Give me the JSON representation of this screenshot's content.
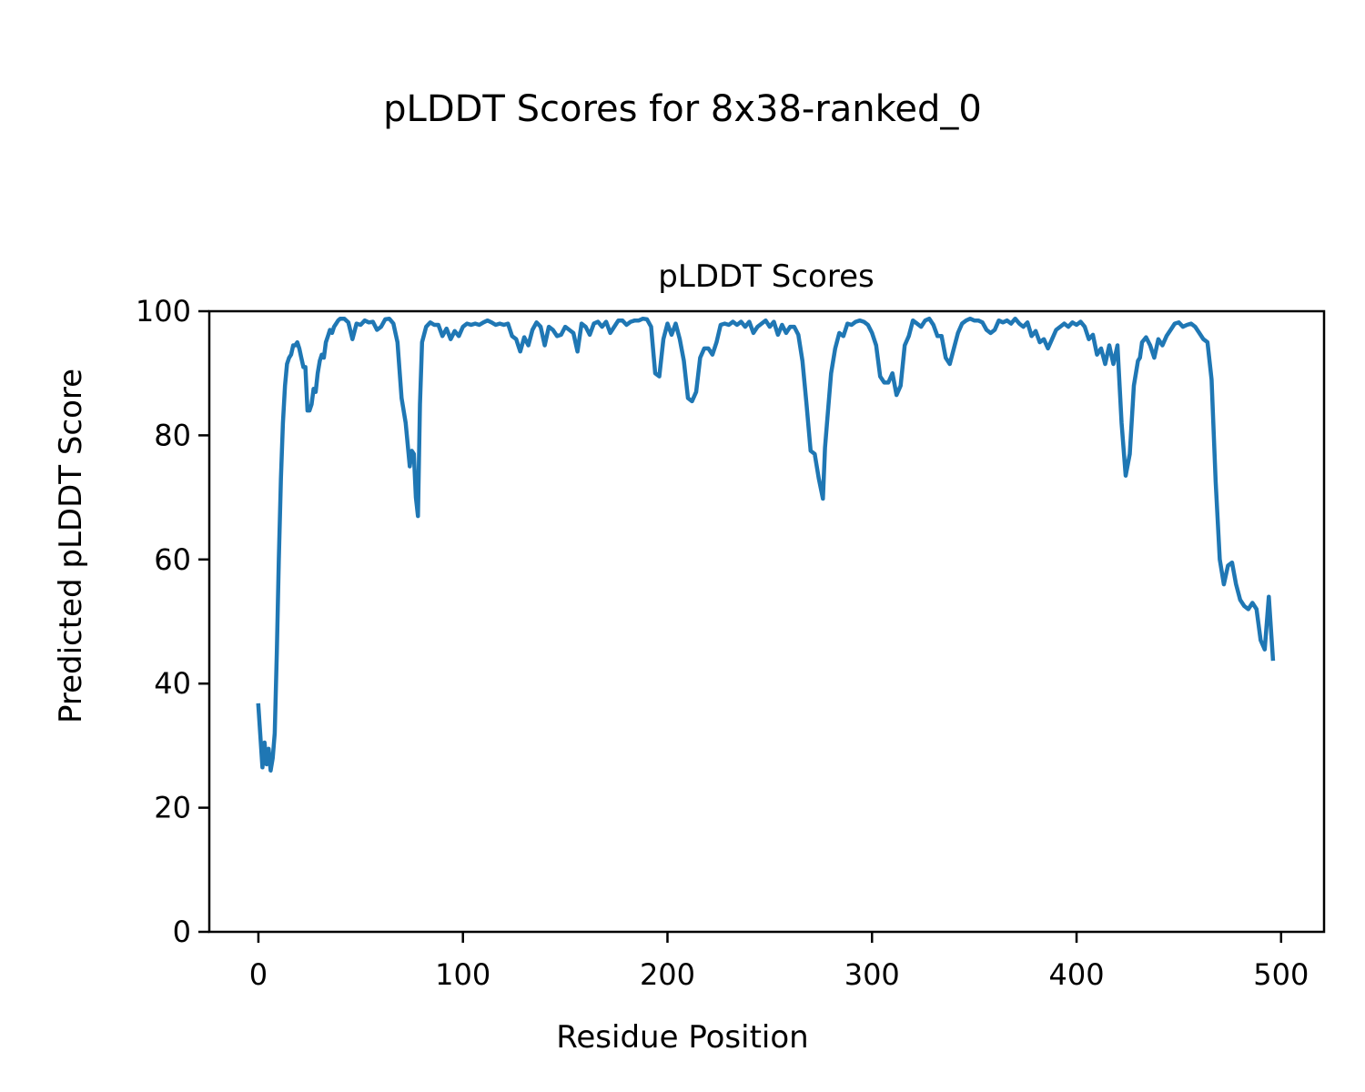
{
  "figure": {
    "suptitle": "pLDDT Scores for 8x38-ranked_0"
  },
  "chart_data": {
    "type": "line",
    "title": "pLDDT Scores",
    "xlabel": "Residue Position",
    "ylabel": "Predicted pLDDT Score",
    "xlim": [
      -24,
      521
    ],
    "ylim": [
      0,
      100
    ],
    "xticks": [
      0,
      100,
      200,
      300,
      400,
      500
    ],
    "yticks": [
      0,
      20,
      40,
      60,
      80,
      100
    ],
    "grid": false,
    "legend": "none",
    "series": [
      {
        "color": "#1f77b4",
        "x": [
          0,
          2,
          3,
          4,
          5,
          6,
          7,
          8,
          9,
          10,
          11,
          12,
          13,
          14,
          15,
          16,
          17,
          18,
          19,
          20,
          21,
          22,
          23,
          24,
          25,
          26,
          27,
          28,
          29,
          30,
          31,
          32,
          33,
          34,
          35,
          36,
          37,
          38,
          39,
          40,
          42,
          44,
          46,
          48,
          50,
          52,
          54,
          56,
          58,
          60,
          62,
          64,
          66,
          68,
          70,
          72,
          74,
          75,
          76,
          77,
          78,
          79,
          80,
          82,
          84,
          86,
          88,
          90,
          92,
          94,
          96,
          98,
          100,
          102,
          104,
          106,
          108,
          110,
          112,
          114,
          116,
          118,
          120,
          122,
          124,
          126,
          128,
          130,
          132,
          134,
          136,
          138,
          140,
          142,
          144,
          146,
          148,
          150,
          152,
          154,
          156,
          158,
          160,
          162,
          164,
          166,
          168,
          170,
          172,
          174,
          176,
          178,
          180,
          182,
          184,
          186,
          188,
          190,
          192,
          194,
          196,
          198,
          200,
          202,
          204,
          206,
          208,
          210,
          212,
          214,
          216,
          218,
          220,
          222,
          224,
          226,
          228,
          230,
          232,
          234,
          236,
          238,
          240,
          242,
          244,
          246,
          248,
          250,
          252,
          254,
          256,
          258,
          260,
          262,
          264,
          266,
          268,
          270,
          272,
          274,
          276,
          277,
          278,
          280,
          282,
          284,
          286,
          288,
          290,
          292,
          294,
          296,
          298,
          300,
          302,
          304,
          306,
          308,
          310,
          312,
          314,
          316,
          318,
          320,
          322,
          324,
          326,
          328,
          330,
          332,
          334,
          336,
          338,
          340,
          342,
          344,
          346,
          348,
          350,
          352,
          354,
          356,
          358,
          360,
          362,
          364,
          366,
          368,
          370,
          372,
          374,
          376,
          378,
          380,
          382,
          384,
          386,
          388,
          390,
          392,
          394,
          396,
          398,
          400,
          402,
          404,
          406,
          408,
          410,
          412,
          414,
          416,
          418,
          420,
          422,
          424,
          426,
          428,
          430,
          431,
          432,
          434,
          436,
          438,
          440,
          442,
          444,
          446,
          448,
          450,
          452,
          454,
          456,
          458,
          460,
          462,
          464,
          466,
          468,
          470,
          472,
          474,
          476,
          478,
          480,
          482,
          484,
          486,
          488,
          490,
          492,
          494,
          496
        ],
        "values": [
          36.5,
          26.5,
          30.5,
          27,
          29.5,
          26,
          28,
          32,
          45,
          60,
          73,
          82,
          88,
          91.5,
          92.5,
          93,
          94.5,
          94.5,
          95,
          94,
          92.5,
          91,
          91,
          84,
          84,
          85,
          87.5,
          87,
          90,
          92,
          93,
          92.5,
          95,
          96,
          97,
          96.5,
          97.5,
          98,
          98.5,
          98.8,
          98.8,
          98.2,
          95.5,
          98,
          97.8,
          98.5,
          98.2,
          98.3,
          97,
          97.5,
          98.7,
          98.8,
          98,
          95,
          86,
          82,
          75,
          77.5,
          77,
          70,
          67,
          85,
          95,
          97.5,
          98.2,
          97.8,
          97.8,
          96,
          97.2,
          95.5,
          96.8,
          96,
          97.5,
          98,
          97.8,
          98,
          97.8,
          98.2,
          98.5,
          98.2,
          97.8,
          98,
          97.8,
          98,
          96,
          95.5,
          93.5,
          95.8,
          94.5,
          97,
          98.2,
          97.5,
          94.5,
          97.5,
          97,
          96,
          96.2,
          97.5,
          97,
          96.5,
          93.5,
          98,
          97.5,
          96.2,
          98,
          98.3,
          97.5,
          98.3,
          96.5,
          97.5,
          98.5,
          98.5,
          97.8,
          98.3,
          98.5,
          98.5,
          98.8,
          98.7,
          97.5,
          90,
          89.5,
          95.5,
          98,
          96.2,
          98,
          95.5,
          92,
          86,
          85.5,
          87,
          92.5,
          94,
          94,
          93,
          95,
          97.8,
          98,
          97.8,
          98.3,
          97.8,
          98.3,
          97.5,
          98.3,
          96.5,
          97.5,
          98,
          98.5,
          97.5,
          98.3,
          96.2,
          97.8,
          96.5,
          97.5,
          97.5,
          96.2,
          92,
          85,
          77.5,
          77,
          73,
          69.8,
          78,
          82,
          90,
          94,
          96.5,
          96,
          98,
          97.8,
          98.3,
          98.5,
          98.3,
          97.8,
          96.5,
          94.5,
          89.5,
          88.5,
          88.5,
          90,
          86.5,
          88,
          94.5,
          96,
          98.5,
          98,
          97.5,
          98.5,
          98.8,
          97.8,
          96,
          96,
          92.5,
          91.5,
          94,
          96.5,
          98,
          98.5,
          98.8,
          98.5,
          98.5,
          98.2,
          97,
          96.5,
          97,
          98.5,
          98.2,
          98.5,
          98,
          98.8,
          98,
          97.5,
          98.2,
          96,
          96.8,
          95,
          95.5,
          94,
          95.5,
          97,
          97.5,
          98,
          97.5,
          98.2,
          97.8,
          98.3,
          97.5,
          95.5,
          96.2,
          93,
          94,
          91.5,
          94.5,
          91.5,
          94.5,
          82,
          73.5,
          77,
          88,
          92,
          92.5,
          95,
          95.8,
          94.5,
          92.5,
          95.5,
          94.5,
          96,
          97,
          98,
          98.2,
          97.5,
          97.8,
          98,
          97.5,
          96.5,
          95.5,
          95,
          89,
          72.5,
          60,
          56,
          59,
          59.5,
          56,
          53.5,
          52.5,
          52,
          53,
          52,
          47,
          45.5,
          54,
          44
        ]
      }
    ]
  }
}
